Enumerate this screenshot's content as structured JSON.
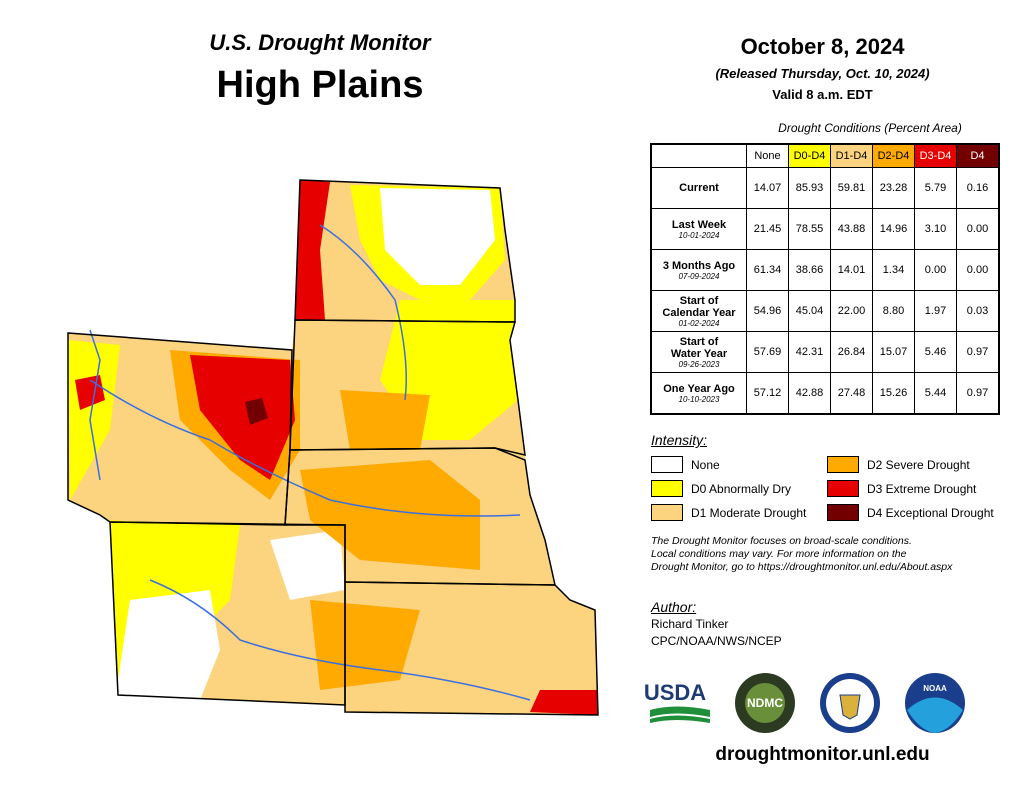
{
  "header": {
    "subtitle": "U.S. Drought Monitor",
    "title": "High Plains"
  },
  "release": {
    "date": "October 8, 2024",
    "released": "(Released Thursday, Oct. 10, 2024)",
    "valid": "Valid 8 a.m. EDT"
  },
  "table": {
    "caption": "Drought Conditions (Percent Area)",
    "columns": [
      {
        "label": "None",
        "color": "#ffffff"
      },
      {
        "label": "D0-D4",
        "color": "#ffff00"
      },
      {
        "label": "D1-D4",
        "color": "#fcd37f"
      },
      {
        "label": "D2-D4",
        "color": "#ffaa00"
      },
      {
        "label": "D3-D4",
        "color": "#e60000"
      },
      {
        "label": "D4",
        "color": "#730000"
      }
    ],
    "rows": [
      {
        "label": [
          "Current"
        ],
        "values": [
          "14.07",
          "85.93",
          "59.81",
          "23.28",
          "5.79",
          "0.16"
        ]
      },
      {
        "label": [
          "Last Week"
        ],
        "date": "10-01-2024",
        "values": [
          "21.45",
          "78.55",
          "43.88",
          "14.96",
          "3.10",
          "0.00"
        ]
      },
      {
        "label": [
          "3 Months Ago"
        ],
        "date": "07-09-2024",
        "values": [
          "61.34",
          "38.66",
          "14.01",
          "1.34",
          "0.00",
          "0.00"
        ]
      },
      {
        "label": [
          "Start of",
          "Calendar Year"
        ],
        "date": "01-02-2024",
        "values": [
          "54.96",
          "45.04",
          "22.00",
          "8.80",
          "1.97",
          "0.03"
        ]
      },
      {
        "label": [
          "Start of",
          "Water Year"
        ],
        "date": "09-26-2023",
        "values": [
          "57.69",
          "42.31",
          "26.84",
          "15.07",
          "5.46",
          "0.97"
        ]
      },
      {
        "label": [
          "One Year Ago"
        ],
        "date": "10-10-2023",
        "values": [
          "57.12",
          "42.88",
          "27.48",
          "15.26",
          "5.44",
          "0.97"
        ]
      }
    ]
  },
  "legend": {
    "title": "Intensity:",
    "items": [
      {
        "label": "None",
        "color": "#ffffff"
      },
      {
        "label": "D0 Abnormally Dry",
        "color": "#ffff00"
      },
      {
        "label": "D1 Moderate Drought",
        "color": "#fcd37f"
      },
      {
        "label": "D2 Severe Drought",
        "color": "#ffaa00"
      },
      {
        "label": "D3 Extreme Drought",
        "color": "#e60000"
      },
      {
        "label": "D4 Exceptional Drought",
        "color": "#730000"
      }
    ]
  },
  "note": [
    "The Drought Monitor focuses on broad-scale conditions.",
    "Local conditions may vary. For more information on the",
    "Drought Monitor, go to https://droughtmonitor.unl.edu/About.aspx"
  ],
  "author": {
    "heading": "Author:",
    "name": "Richard Tinker",
    "org": "CPC/NOAA/NWS/NCEP"
  },
  "logos": {
    "usda": "USDA",
    "ndmc": "NDMC",
    "noaa": "NOAA"
  },
  "url": "droughtmonitor.unl.edu"
}
